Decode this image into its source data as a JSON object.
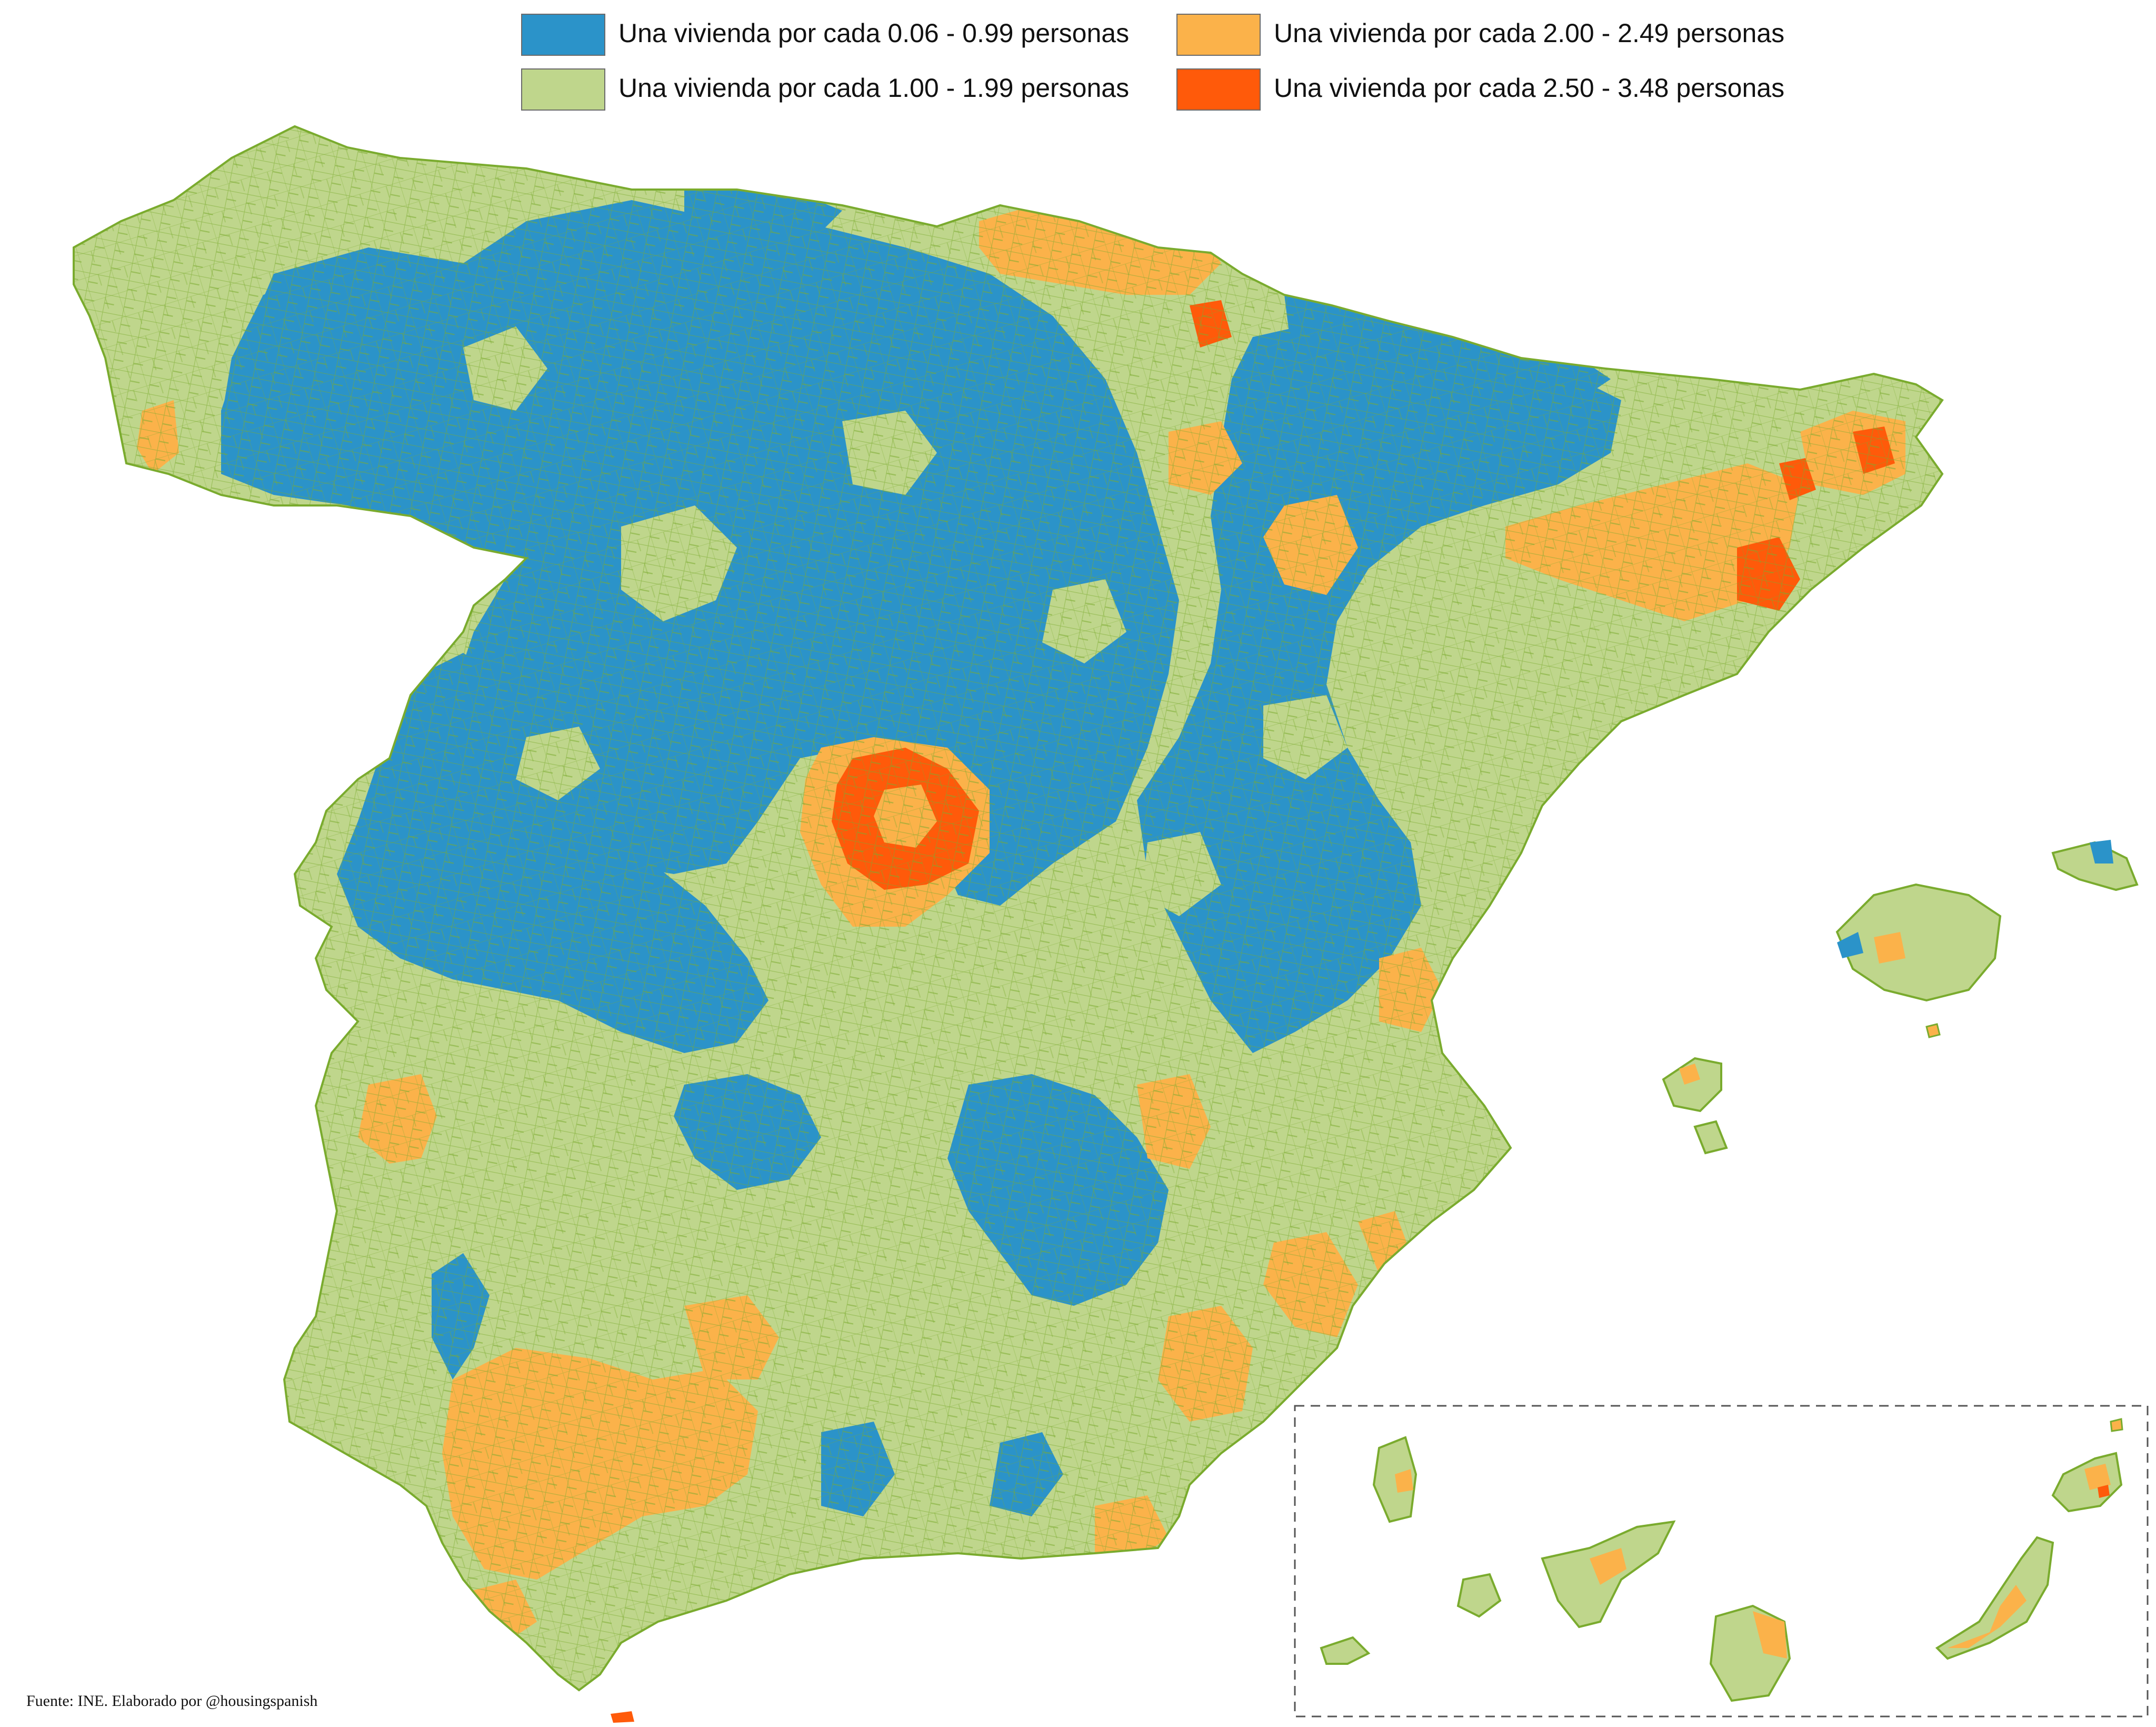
{
  "legend": {
    "items": [
      {
        "label": "Una vivienda por cada 0.06 - 0.99 personas",
        "color": "#2b93c9"
      },
      {
        "label": "Una vivienda por cada 1.00 - 1.99 personas",
        "color": "#bfd68c"
      },
      {
        "label": "Una vivienda por cada 2.00 - 2.49 personas",
        "color": "#fbb24a"
      },
      {
        "label": "Una vivienda por cada 2.50 - 3.48 personas",
        "color": "#ff5a0a"
      }
    ]
  },
  "map": {
    "border_color": "#7aab2e",
    "inset_border_color": "#555555",
    "regions": [
      "Peninsula",
      "Islas Baleares",
      "Islas Canarias"
    ]
  },
  "source": "Fuente: INE. Elaborado por @housingspanish"
}
